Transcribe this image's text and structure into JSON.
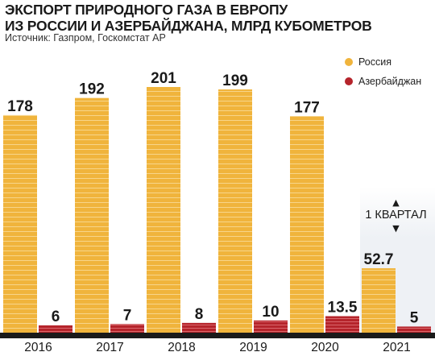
{
  "header": {
    "title_line1": "ЭКСПОРТ ПРИРОДНОГО ГАЗА В ЕВРОПУ",
    "title_line2": "ИЗ РОССИИ И АЗЕРБАЙДЖАНА, МЛРД КУБОМЕТРОВ",
    "source": "Источник: Газпром, Госкомстат АР"
  },
  "colors": {
    "russia": "#F0B43C",
    "russia_stripe": "#F7D58A",
    "azerbaijan": "#B5242B",
    "azerbaijan_stripe": "#D9666B",
    "baseline": "#1a1a1a",
    "highlight_bg": "#EEF1F5"
  },
  "chart_data": {
    "type": "bar",
    "categories": [
      "2016",
      "2017",
      "2018",
      "2019",
      "2020",
      "2021"
    ],
    "series": [
      {
        "name": "Россия",
        "values": [
          178,
          192,
          201,
          199,
          177,
          52.7
        ]
      },
      {
        "name": "Азербайджан",
        "values": [
          6,
          7,
          8,
          10,
          13.5,
          5
        ]
      }
    ],
    "value_labels": [
      [
        "178",
        "192",
        "201",
        "199",
        "177",
        "52.7"
      ],
      [
        "6",
        "7",
        "8",
        "10",
        "13.5",
        "5"
      ]
    ],
    "legend_position": "top-right",
    "ylim": [
      0,
      201
    ],
    "grid": false,
    "annotation": {
      "text": "1 КВАРТАЛ",
      "category": "2021",
      "arrow_up": "▲",
      "arrow_down": "▼"
    }
  }
}
